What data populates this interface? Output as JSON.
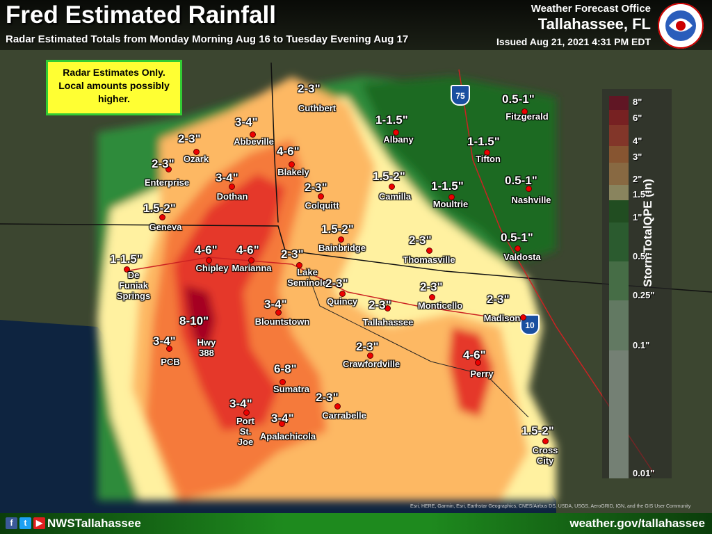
{
  "header": {
    "title": "Fred Estimated Rainfall",
    "subtitle": "Radar Estimated Totals from Monday Morning Aug 16 to Tuesday Evening Aug 17",
    "office_label": "Weather Forecast Office",
    "office_city": "Tallahassee, FL",
    "issued": "Issued Aug 21, 2021 4:31 PM EDT",
    "logo_text": "NATIONAL WEATHER SERVICE"
  },
  "note": {
    "text_line1": "Radar Estimates Only.",
    "text_line2": "Local amounts possibly",
    "text_line3": "higher."
  },
  "legend": {
    "title": "StormTotalQPE (in)",
    "ticks": [
      "8\"",
      "6\"",
      "4\"",
      "3\"",
      "2\"",
      "1.5\"",
      "1\"",
      "0.5\"",
      "0.25\"",
      "0.1\"",
      "0.01\""
    ],
    "colors": [
      "#a50021",
      "#d7191c",
      "#f0482c",
      "#fb8d3c",
      "#fdb863",
      "#fff3a0",
      "#1a7a1a",
      "#2f9a38",
      "#6cc06c",
      "#a8dca8",
      "#d0ecd0"
    ]
  },
  "highways": {
    "i75": "75",
    "i10": "10"
  },
  "footer": {
    "handle": "NWSTallahassee",
    "site": "weather.gov/tallahassee"
  },
  "credits": "Esri, HERE, Garmin, Esri, Earthstar Geographics, CNES/Airbus DS, USDA, USGS, AeroGRID, IGN, and the GIS User Community",
  "locations": [
    {
      "name": "Cuthbert",
      "amount": "2-3\""
    },
    {
      "name": "Abbeville",
      "amount": "3-4\""
    },
    {
      "name": "Albany",
      "amount": "1-1.5\""
    },
    {
      "name": "Fitzgerald",
      "amount": "0.5-1\""
    },
    {
      "name": "Ozark",
      "amount": "2-3\""
    },
    {
      "name": "Blakely",
      "amount": "4-6\""
    },
    {
      "name": "Tifton",
      "amount": "1-1.5\""
    },
    {
      "name": "Enterprise",
      "amount": "2-3\""
    },
    {
      "name": "Dothan",
      "amount": "3-4\""
    },
    {
      "name": "Colquitt",
      "amount": "2-3\""
    },
    {
      "name": "Camilla",
      "amount": "1.5-2\""
    },
    {
      "name": "Moultrie",
      "amount": "1-1.5\""
    },
    {
      "name": "Nashville",
      "amount": "0.5-1\""
    },
    {
      "name": "Geneva",
      "amount": "1.5-2\""
    },
    {
      "name": "Bainbridge",
      "amount": "1.5-2\""
    },
    {
      "name": "Thomasville",
      "amount": "2-3\""
    },
    {
      "name": "Valdosta",
      "amount": "0.5-1\""
    },
    {
      "name": "De Funiak Springs",
      "amount": "1-1.5\""
    },
    {
      "name": "Chipley",
      "amount": "4-6\""
    },
    {
      "name": "Marianna",
      "amount": "4-6\""
    },
    {
      "name": "Lake Seminole",
      "amount": "2-3\""
    },
    {
      "name": "Quincy",
      "amount": "2-3\""
    },
    {
      "name": "Monticello",
      "amount": "2-3\""
    },
    {
      "name": "Tallahassee",
      "amount": "2-3\""
    },
    {
      "name": "Madison",
      "amount": "2-3\""
    },
    {
      "name": "Blountstown",
      "amount": "3-4\""
    },
    {
      "name": "Hwy 388",
      "amount": "8-10\""
    },
    {
      "name": "PCB",
      "amount": "3-4\""
    },
    {
      "name": "Crawfordville",
      "amount": "2-3\""
    },
    {
      "name": "Perry",
      "amount": "4-6\""
    },
    {
      "name": "Sumatra",
      "amount": "6-8\""
    },
    {
      "name": "Carrabelle",
      "amount": "2-3\""
    },
    {
      "name": "Port St. Joe",
      "amount": "3-4\""
    },
    {
      "name": "Apalachicola",
      "amount": "3-4\""
    },
    {
      "name": "Cross City",
      "amount": "1.5-2\""
    }
  ]
}
